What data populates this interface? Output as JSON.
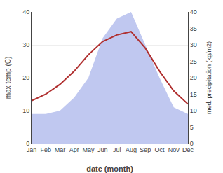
{
  "chart_data": {
    "type": "line",
    "xlabel": "date (month)",
    "ylabel": "max temp (C)",
    "y2label": "med. precipitation (kg/m2)",
    "categories": [
      "Jan",
      "Feb",
      "Mar",
      "Apr",
      "May",
      "Jun",
      "Jul",
      "Aug",
      "Sep",
      "Oct",
      "Nov",
      "Dec"
    ],
    "series": [
      {
        "type": "area",
        "axis": "y2",
        "color": "#c0c8f0",
        "values": [
          9,
          9,
          10,
          14,
          20,
          32,
          38,
          40,
          30,
          20,
          11,
          9
        ]
      },
      {
        "type": "line",
        "color": "#b03030",
        "values": [
          13,
          15,
          18,
          22,
          27,
          31,
          33,
          34,
          29,
          22,
          16,
          12
        ]
      }
    ],
    "ylim": [
      0,
      40
    ],
    "yticks": [
      0,
      10,
      20,
      30,
      40
    ],
    "y2lim": [
      0,
      40
    ],
    "y2ticks": [
      0,
      5,
      10,
      15,
      20,
      25,
      30,
      35,
      40
    ],
    "grid": true
  }
}
